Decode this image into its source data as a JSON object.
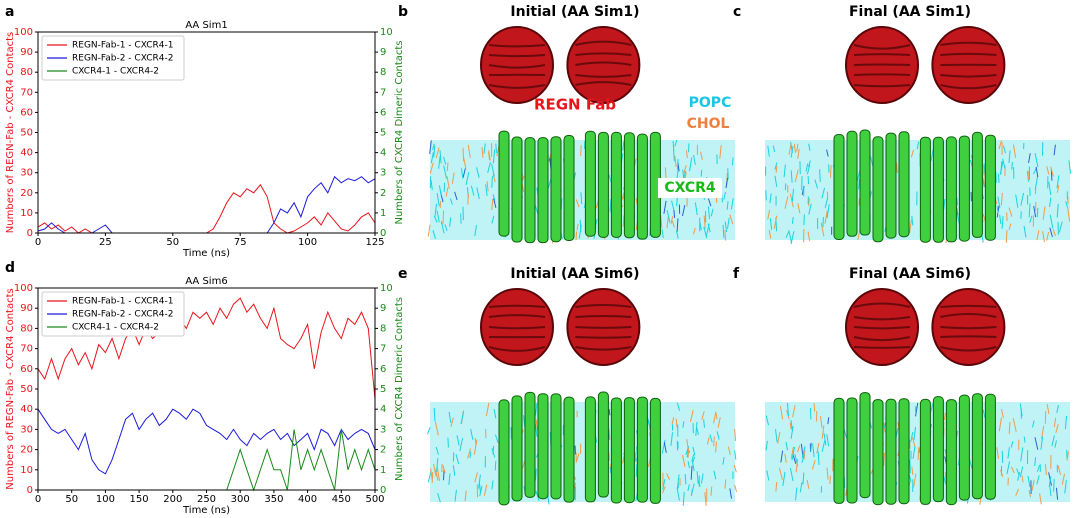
{
  "chart_data": [
    {
      "type": "line",
      "panel": "a",
      "title": "AA Sim1",
      "xlabel": "Time (ns)",
      "ylabel": "Numbers of REGN-Fab - CXCR4 Contacts",
      "y2label": "Numbers of CXCR4 Dimeric Contacts",
      "x": [
        0,
        2.5,
        5,
        7.5,
        10,
        12.5,
        15,
        17.5,
        20,
        22.5,
        25,
        27.5,
        30,
        32.5,
        35,
        37.5,
        40,
        42.5,
        45,
        47.5,
        50,
        52.5,
        55,
        57.5,
        60,
        62.5,
        65,
        67.5,
        70,
        72.5,
        75,
        77.5,
        80,
        82.5,
        85,
        87.5,
        90,
        92.5,
        95,
        97.5,
        100,
        102.5,
        105,
        107.5,
        110,
        112.5,
        115,
        117.5,
        120,
        122.5,
        125
      ],
      "series": [
        {
          "name": "REGN-Fab-1 - CXCR4-1",
          "color": "#e8141c",
          "values": [
            3,
            5,
            2,
            4,
            1,
            3,
            0,
            2,
            0,
            0,
            0,
            0,
            0,
            0,
            0,
            0,
            0,
            0,
            0,
            0,
            0,
            0,
            0,
            0,
            0,
            0,
            2,
            8,
            15,
            20,
            18,
            22,
            20,
            24,
            18,
            5,
            2,
            0,
            1,
            3,
            5,
            8,
            4,
            10,
            6,
            2,
            1,
            4,
            8,
            10,
            5
          ]
        },
        {
          "name": "REGN-Fab-2 - CXCR4-2",
          "color": "#1a1adc",
          "values": [
            1,
            2,
            5,
            2,
            0,
            0,
            0,
            0,
            0,
            2,
            4,
            0,
            0,
            0,
            0,
            0,
            0,
            0,
            0,
            0,
            0,
            0,
            0,
            0,
            0,
            0,
            0,
            0,
            0,
            0,
            0,
            0,
            0,
            0,
            0,
            5,
            12,
            10,
            15,
            8,
            18,
            22,
            25,
            20,
            28,
            25,
            27,
            26,
            28,
            25,
            27
          ]
        },
        {
          "name": "CXCR4-1 - CXCR4-2",
          "color": "#1a8a1a",
          "axis": "y2",
          "values": [
            0,
            0,
            0,
            0,
            0,
            0,
            0,
            0,
            0,
            0,
            0,
            0,
            0,
            0,
            0,
            0,
            0,
            0,
            0,
            0,
            0,
            0,
            0,
            0,
            0,
            0,
            0,
            0,
            0,
            0,
            0,
            0,
            0,
            0,
            0,
            0,
            0,
            0,
            0,
            0,
            0,
            0,
            0,
            0,
            0,
            0,
            0,
            0,
            0,
            0,
            0
          ]
        }
      ],
      "xlim": [
        0,
        125
      ],
      "xticks": [
        0,
        25,
        50,
        75,
        100,
        125
      ],
      "ylim": [
        0,
        100
      ],
      "yticks": [
        0,
        10,
        20,
        30,
        40,
        50,
        60,
        70,
        80,
        90,
        100
      ],
      "y2lim": [
        0,
        10
      ],
      "y2ticks": [
        0,
        1,
        2,
        3,
        4,
        5,
        6,
        7,
        8,
        9,
        10
      ],
      "legend": "upper left"
    },
    {
      "type": "line",
      "panel": "d",
      "title": "AA Sim6",
      "xlabel": "Time (ns)",
      "ylabel": "Numbers of REGN-Fab - CXCR4 Contacts",
      "y2label": "Numbers of CXCR4 Dimeric Contacts",
      "x": [
        0,
        10,
        20,
        30,
        40,
        50,
        60,
        70,
        80,
        90,
        100,
        110,
        120,
        130,
        140,
        150,
        160,
        170,
        180,
        190,
        200,
        210,
        220,
        230,
        240,
        250,
        260,
        270,
        280,
        290,
        300,
        310,
        320,
        330,
        340,
        350,
        360,
        370,
        380,
        390,
        400,
        410,
        420,
        430,
        440,
        450,
        460,
        470,
        480,
        490,
        500
      ],
      "series": [
        {
          "name": "REGN-Fab-1 - CXCR4-1",
          "color": "#e8141c",
          "values": [
            60,
            55,
            65,
            55,
            65,
            70,
            62,
            68,
            60,
            72,
            68,
            75,
            65,
            75,
            80,
            72,
            80,
            75,
            78,
            82,
            80,
            85,
            80,
            88,
            85,
            88,
            82,
            90,
            85,
            92,
            95,
            88,
            92,
            85,
            80,
            90,
            75,
            72,
            70,
            75,
            82,
            60,
            78,
            88,
            80,
            75,
            85,
            82,
            88,
            80,
            45
          ]
        },
        {
          "name": "REGN-Fab-2 - CXCR4-2",
          "color": "#1a1adc",
          "values": [
            40,
            35,
            30,
            28,
            30,
            25,
            20,
            28,
            15,
            10,
            8,
            15,
            25,
            35,
            38,
            30,
            35,
            38,
            32,
            35,
            40,
            38,
            35,
            40,
            38,
            32,
            30,
            28,
            25,
            30,
            25,
            22,
            28,
            25,
            28,
            30,
            25,
            28,
            22,
            25,
            28,
            20,
            30,
            28,
            22,
            30,
            25,
            28,
            30,
            28,
            20
          ]
        },
        {
          "name": "CXCR4-1 - CXCR4-2",
          "color": "#1a8a1a",
          "axis": "y2",
          "values": [
            0,
            0,
            0,
            0,
            0,
            0,
            0,
            0,
            0,
            0,
            0,
            0,
            0,
            0,
            0,
            0,
            0,
            0,
            0,
            0,
            0,
            0,
            0,
            0,
            0,
            0,
            0,
            0,
            0,
            1,
            2,
            1,
            0,
            1,
            2,
            1,
            1,
            0,
            3,
            1,
            2,
            1,
            2,
            1,
            0,
            3,
            1,
            2,
            1,
            2,
            1
          ]
        }
      ],
      "xlim": [
        0,
        500
      ],
      "xticks": [
        0,
        50,
        100,
        150,
        200,
        250,
        300,
        350,
        400,
        450,
        500
      ],
      "ylim": [
        0,
        100
      ],
      "yticks": [
        0,
        10,
        20,
        30,
        40,
        50,
        60,
        70,
        80,
        90,
        100
      ],
      "y2lim": [
        0,
        10
      ],
      "y2ticks": [
        0,
        1,
        2,
        3,
        4,
        5,
        6,
        7,
        8,
        9,
        10
      ],
      "legend": "upper left"
    }
  ],
  "panels": [
    {
      "label": "b",
      "title": "Initial (AA Sim1)",
      "annotations": [
        "REGN Fab",
        "POPC",
        "CHOL",
        "CXCR4"
      ]
    },
    {
      "label": "c",
      "title": "Final (AA Sim1)"
    },
    {
      "label": "e",
      "title": "Initial (AA Sim6)"
    },
    {
      "label": "f",
      "title": "Final (AA Sim6)"
    }
  ]
}
